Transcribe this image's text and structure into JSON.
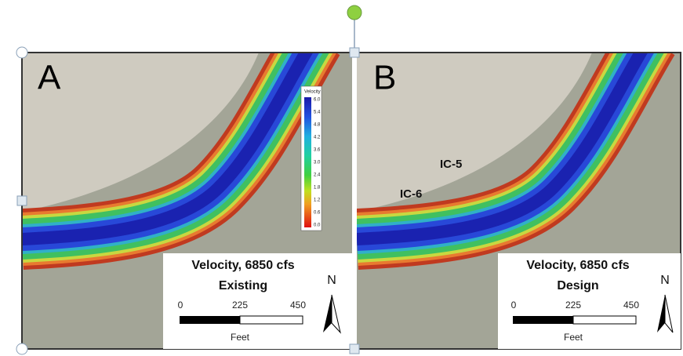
{
  "panels": [
    {
      "letter": "A",
      "legend_title": "Velocity, 6850 cfs",
      "scenario": "Existing",
      "scale_labels": [
        "0",
        "225",
        "450"
      ],
      "scale_unit": "Feet",
      "north": "N"
    },
    {
      "letter": "B",
      "legend_title": "Velocity, 6850 cfs",
      "scenario": "Design",
      "scale_labels": [
        "0",
        "225",
        "450"
      ],
      "scale_unit": "Feet",
      "north": "N",
      "annotations": [
        "IC-5",
        "IC-6"
      ]
    }
  ],
  "velocity_legend": {
    "title": "Velocity",
    "labels": [
      "6.0",
      "5.4",
      "4.8",
      "4.2",
      "3.6",
      "3.0",
      "2.4",
      "1.8",
      "1.2",
      "0.6",
      "0.0"
    ]
  }
}
